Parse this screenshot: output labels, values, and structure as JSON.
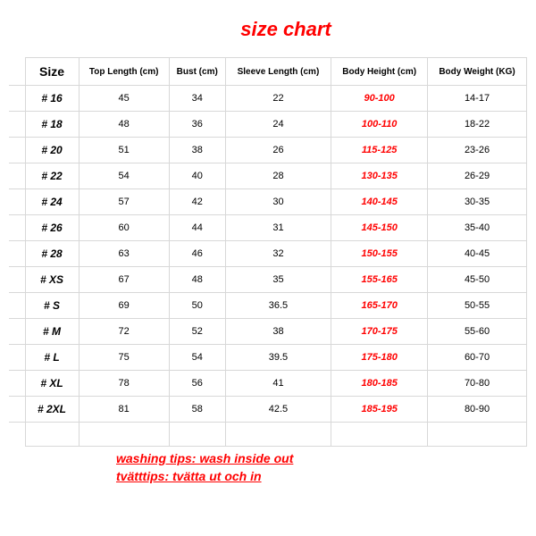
{
  "title": "size chart",
  "headers": {
    "size": "Size",
    "top_length": "Top Length (cm)",
    "bust": "Bust (cm)",
    "sleeve": "Sleeve Length (cm)",
    "height": "Body Height (cm)",
    "weight": "Body Weight (KG)"
  },
  "rows": [
    {
      "size": "# 16",
      "top": "45",
      "bust": "34",
      "sleeve": "22",
      "height": "90-100",
      "weight": "14-17"
    },
    {
      "size": "# 18",
      "top": "48",
      "bust": "36",
      "sleeve": "24",
      "height": "100-110",
      "weight": "18-22"
    },
    {
      "size": "# 20",
      "top": "51",
      "bust": "38",
      "sleeve": "26",
      "height": "115-125",
      "weight": "23-26"
    },
    {
      "size": "# 22",
      "top": "54",
      "bust": "40",
      "sleeve": "28",
      "height": "130-135",
      "weight": "26-29"
    },
    {
      "size": "# 24",
      "top": "57",
      "bust": "42",
      "sleeve": "30",
      "height": "140-145",
      "weight": "30-35"
    },
    {
      "size": "# 26",
      "top": "60",
      "bust": "44",
      "sleeve": "31",
      "height": "145-150",
      "weight": "35-40"
    },
    {
      "size": "# 28",
      "top": "63",
      "bust": "46",
      "sleeve": "32",
      "height": "150-155",
      "weight": "40-45"
    },
    {
      "size": "# XS",
      "top": "67",
      "bust": "48",
      "sleeve": "35",
      "height": "155-165",
      "weight": "45-50"
    },
    {
      "size": "# S",
      "top": "69",
      "bust": "50",
      "sleeve": "36.5",
      "height": "165-170",
      "weight": "50-55"
    },
    {
      "size": "# M",
      "top": "72",
      "bust": "52",
      "sleeve": "38",
      "height": "170-175",
      "weight": "55-60"
    },
    {
      "size": "# L",
      "top": "75",
      "bust": "54",
      "sleeve": "39.5",
      "height": "175-180",
      "weight": "60-70"
    },
    {
      "size": "# XL",
      "top": "78",
      "bust": "56",
      "sleeve": "41",
      "height": "180-185",
      "weight": "70-80"
    },
    {
      "size": "# 2XL",
      "top": "81",
      "bust": "58",
      "sleeve": "42.5",
      "height": "185-195",
      "weight": "80-90"
    }
  ],
  "tips": {
    "line1": "washing tips: wash inside out",
    "line2": "tvätttips: tvätta ut och in"
  },
  "style": {
    "highlight_color": "#ff0000",
    "border_color": "#d8d8d8",
    "bg_color": "#ffffff",
    "text_color": "#000000",
    "title_fontsize": 22,
    "header_fontsize": 10,
    "cell_fontsize": 11,
    "size_col_fontsize": 12,
    "tips_fontsize": 14
  }
}
